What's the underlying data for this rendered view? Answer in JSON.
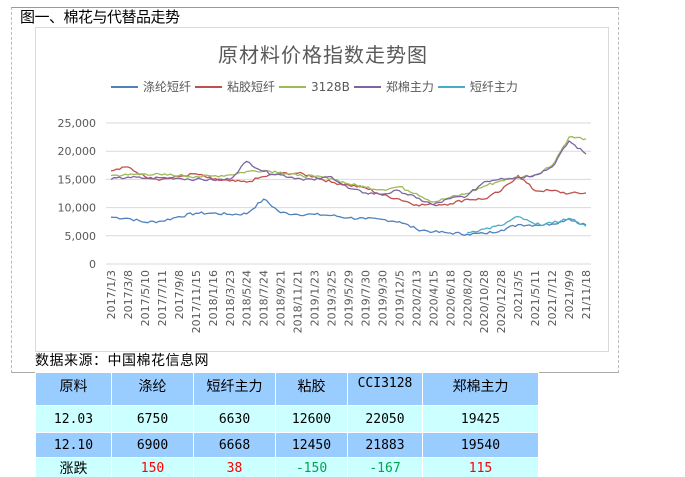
{
  "figure": {
    "caption": "图一、棉花与代替品走势",
    "source": "数据来源：中国棉花信息网"
  },
  "chart_data": {
    "type": "line",
    "title": "原材料价格指数走势图",
    "xlabel": "",
    "ylabel": "",
    "ylim": [
      0,
      25000
    ],
    "yticks": [
      "0",
      "5,000",
      "10,000",
      "15,000",
      "20,000",
      "25,000"
    ],
    "grid": true,
    "legend_position": "top",
    "categories": [
      "2017/1/3",
      "2017/3/8",
      "2017/5/10",
      "2017/7/11",
      "2017/9/8",
      "2017/11/15",
      "2018/1/16",
      "2018/3/23",
      "2018/5/24",
      "2018/7/24",
      "2018/9/21",
      "2018/11/21",
      "2019/1/23",
      "2019/3/25",
      "2019/5/29",
      "2019/7/30",
      "2019/9/30",
      "2019/12/5",
      "2020/2/13",
      "2020/4/15",
      "2020/6/18",
      "2020/8/20",
      "2020/10/28",
      "2020/12/28",
      "2021/3/5",
      "2021/5/11",
      "2021/7/12",
      "2021/9/9",
      "21/11/18"
    ],
    "series": [
      {
        "name": "涤纶短纤",
        "color": "#4f81bd",
        "values": [
          8300,
          8100,
          7400,
          7600,
          8400,
          9000,
          9000,
          8800,
          8900,
          11500,
          9100,
          8800,
          8800,
          8600,
          8200,
          8000,
          7900,
          7500,
          6200,
          5700,
          5500,
          5300,
          5400,
          6000,
          7000,
          6900,
          7100,
          8000,
          6900
        ]
      },
      {
        "name": "粘胶短纤",
        "color": "#c0504d",
        "values": [
          16500,
          17200,
          15500,
          15000,
          15500,
          16000,
          15000,
          14700,
          14500,
          15500,
          16000,
          16100,
          15500,
          14500,
          14000,
          13500,
          12200,
          11500,
          10500,
          10500,
          10700,
          11500,
          11500,
          13000,
          15700,
          13000,
          13000,
          12500,
          12600
        ]
      },
      {
        "name": "3128B",
        "color": "#9bbb59",
        "values": [
          15700,
          15800,
          16000,
          15800,
          15700,
          15500,
          15600,
          15800,
          16400,
          16600,
          16300,
          15700,
          15500,
          15200,
          14200,
          13600,
          13200,
          13700,
          12500,
          11000,
          11800,
          12500,
          13800,
          14800,
          15400,
          15800,
          17500,
          22500,
          22200
        ]
      },
      {
        "name": "郑棉主力",
        "color": "#8064a2",
        "values": [
          15000,
          15400,
          15200,
          15300,
          15200,
          15000,
          14900,
          15000,
          18200,
          16400,
          15800,
          15200,
          14900,
          15500,
          13400,
          12600,
          12400,
          13000,
          11700,
          10500,
          11600,
          12100,
          14600,
          15200,
          15300,
          15800,
          17200,
          21800,
          19500
        ]
      },
      {
        "name": "短纤主力",
        "color": "#4bacc6",
        "values": [
          null,
          null,
          null,
          null,
          null,
          null,
          null,
          null,
          null,
          null,
          null,
          null,
          null,
          null,
          null,
          null,
          null,
          null,
          null,
          null,
          null,
          5600,
          6200,
          6800,
          8400,
          7000,
          7200,
          8100,
          6700
        ]
      }
    ]
  },
  "table": {
    "headers": [
      "原料",
      "涤纶",
      "短纤主力",
      "粘胶",
      "CCI3128",
      "郑棉主力"
    ],
    "rows": [
      [
        "12.03",
        "6750",
        "6630",
        "12600",
        "22050",
        "19425"
      ],
      [
        "12.10",
        "6900",
        "6668",
        "12450",
        "21883",
        "19540"
      ],
      [
        "涨跌",
        "150",
        "38",
        "-150",
        "-167",
        "115"
      ]
    ],
    "change_colors": {
      "up": "#ff0000",
      "down": "#00a550"
    }
  }
}
